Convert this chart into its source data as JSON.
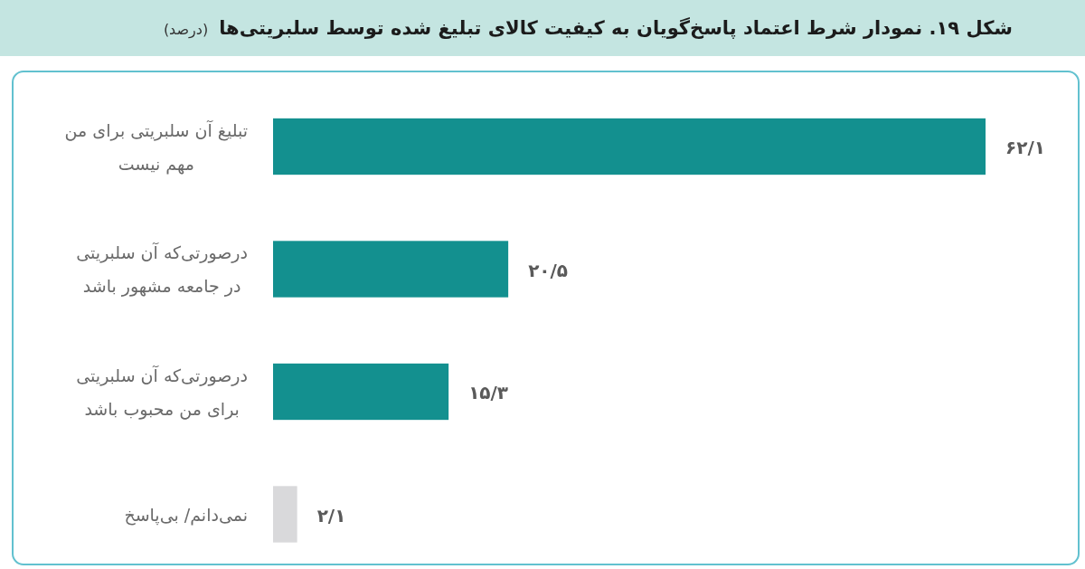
{
  "chart_data": {
    "type": "bar",
    "orientation": "horizontal",
    "title": "شکل ۱۹. نمودار شرط اعتماد پاسخ‌گویان به کیفیت کالای تبلیغ شده توسط سلبریتی‌ها",
    "subtitle": "(درصد)",
    "categories": [
      "تبلیغ آن سلبریتی برای من\nمهم نیست",
      "درصورتی‌که آن سلبریتی\nدر جامعه مشهور باشد",
      "درصورتی‌که آن سلبریتی\nبرای من محبوب باشد",
      "نمی‌دانم/ بی‌پاسخ"
    ],
    "values": [
      62.1,
      20.5,
      15.3,
      2.1
    ],
    "colors": [
      "#13908f",
      "#13908f",
      "#13908f",
      "#d9d9db"
    ],
    "value_labels": [
      "۶۲/۱",
      "۲۰/۵",
      "۱۵/۳",
      "۲/۱"
    ]
  }
}
